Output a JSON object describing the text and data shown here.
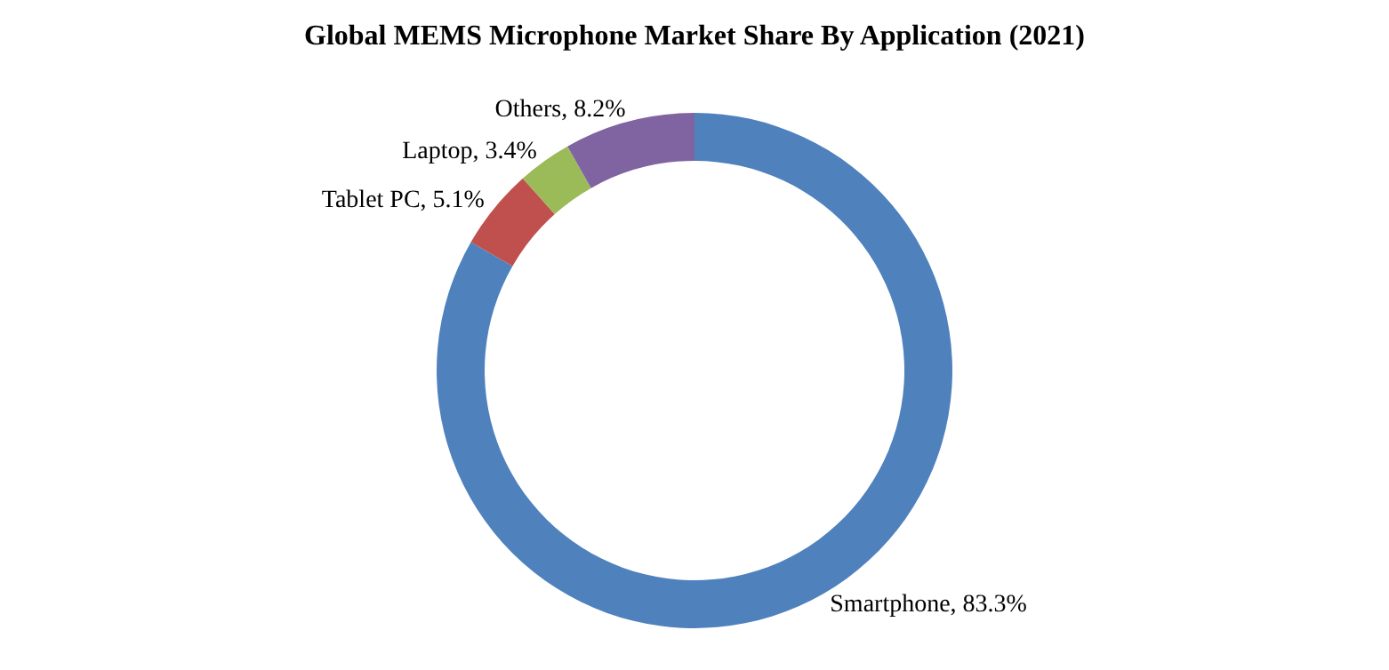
{
  "chart_data": {
    "type": "donut",
    "title": "Global MEMS Microphone Market Share By Application (2021)",
    "categories": [
      "Smartphone",
      "Tablet PC",
      "Laptop",
      "Others"
    ],
    "values": [
      83.3,
      5.1,
      3.4,
      8.2
    ],
    "colors": [
      "#4f81bd",
      "#c0504d",
      "#9bbb59",
      "#8064a2"
    ],
    "value_labels": [
      "83.3%",
      "5.1%",
      "3.4%",
      "8.2%"
    ]
  }
}
